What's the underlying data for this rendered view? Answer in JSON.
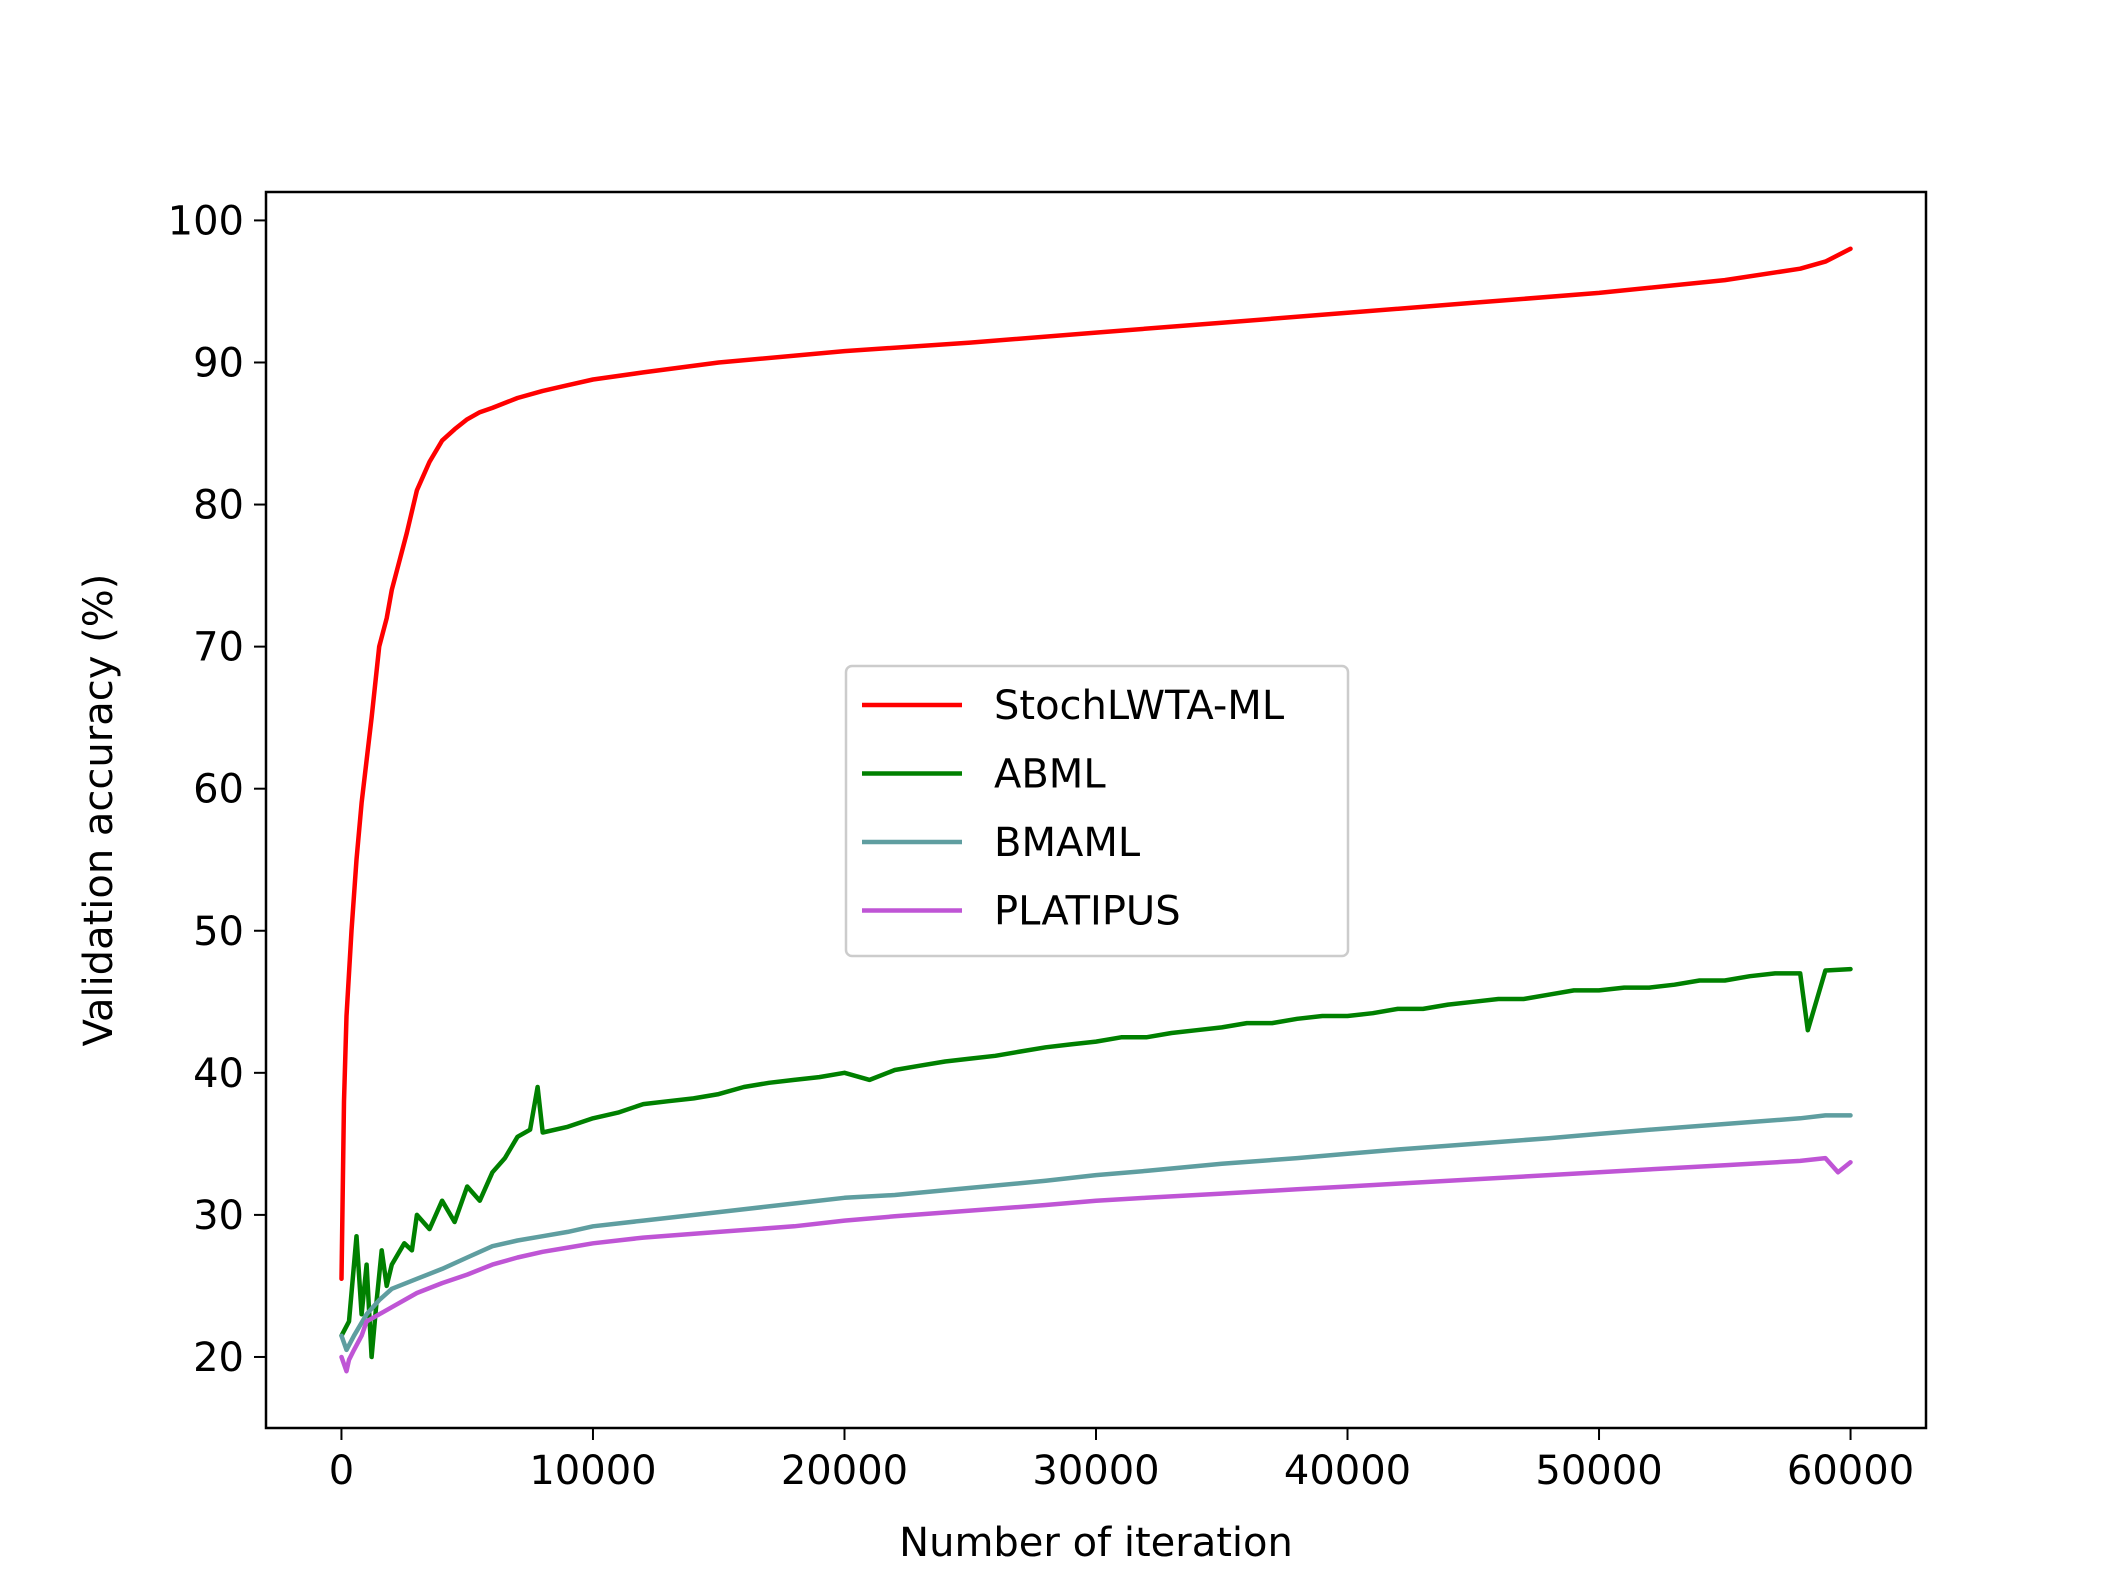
{
  "chart_data": {
    "type": "line",
    "title": "",
    "xlabel": "Number of iteration",
    "ylabel": "Validation accuracy (%)",
    "xlim": [
      -3000,
      63000
    ],
    "ylim": [
      15,
      102
    ],
    "xticks": [
      0,
      10000,
      20000,
      30000,
      40000,
      50000,
      60000
    ],
    "xtick_labels": [
      "0",
      "10000",
      "20000",
      "30000",
      "40000",
      "50000",
      "60000"
    ],
    "yticks": [
      20,
      30,
      40,
      50,
      60,
      70,
      80,
      90,
      100
    ],
    "ytick_labels": [
      "20",
      "30",
      "40",
      "50",
      "60",
      "70",
      "80",
      "90",
      "100"
    ],
    "grid": false,
    "legend_position": "center",
    "series": [
      {
        "name": "StochLWTA-ML",
        "color": "#ff0000",
        "x": [
          0,
          100,
          200,
          400,
          600,
          800,
          1000,
          1200,
          1500,
          1800,
          2000,
          2300,
          2600,
          3000,
          3500,
          4000,
          4500,
          5000,
          5500,
          6000,
          7000,
          8000,
          9000,
          10000,
          12000,
          15000,
          20000,
          25000,
          30000,
          35000,
          40000,
          45000,
          50000,
          55000,
          58000,
          59000,
          60000
        ],
        "values": [
          25.5,
          38,
          44,
          50,
          55,
          59,
          62,
          65,
          70,
          72,
          74,
          76,
          78,
          81,
          83,
          84.5,
          85.3,
          86,
          86.5,
          86.8,
          87.5,
          88,
          88.4,
          88.8,
          89.3,
          90,
          90.8,
          91.4,
          92.1,
          92.8,
          93.5,
          94.2,
          94.9,
          95.8,
          96.6,
          97.1,
          98
        ]
      },
      {
        "name": "ABML",
        "color": "#008000",
        "x": [
          0,
          300,
          600,
          800,
          1000,
          1200,
          1400,
          1600,
          1800,
          2000,
          2500,
          2800,
          3000,
          3500,
          4000,
          4500,
          5000,
          5500,
          6000,
          6500,
          7000,
          7500,
          7800,
          8000,
          9000,
          10000,
          11000,
          12000,
          13000,
          14000,
          15000,
          16000,
          17000,
          18000,
          19000,
          20000,
          21000,
          22000,
          23000,
          24000,
          25000,
          26000,
          27000,
          28000,
          29000,
          30000,
          31000,
          32000,
          33000,
          34000,
          35000,
          36000,
          37000,
          38000,
          39000,
          40000,
          41000,
          42000,
          43000,
          44000,
          45000,
          46000,
          47000,
          48000,
          49000,
          50000,
          51000,
          52000,
          53000,
          54000,
          55000,
          56000,
          57000,
          58000,
          58300,
          59000,
          60000
        ],
        "values": [
          21.5,
          22.5,
          28.5,
          23,
          26.5,
          20,
          24,
          27.5,
          25,
          26.5,
          28,
          27.5,
          30,
          29,
          31,
          29.5,
          32,
          31,
          33,
          34,
          35.5,
          36,
          39,
          35.8,
          36.2,
          36.8,
          37.2,
          37.8,
          38,
          38.2,
          38.5,
          39,
          39.3,
          39.5,
          39.7,
          40,
          39.5,
          40.2,
          40.5,
          40.8,
          41,
          41.2,
          41.5,
          41.8,
          42,
          42.2,
          42.5,
          42.5,
          42.8,
          43,
          43.2,
          43.5,
          43.5,
          43.8,
          44,
          44,
          44.2,
          44.5,
          44.5,
          44.8,
          45,
          45.2,
          45.2,
          45.5,
          45.8,
          45.8,
          46,
          46,
          46.2,
          46.5,
          46.5,
          46.8,
          47,
          47,
          43,
          47.2,
          47.3
        ]
      },
      {
        "name": "BMAML",
        "color": "#5f9ea0",
        "x": [
          0,
          200,
          500,
          1000,
          1500,
          2000,
          3000,
          4000,
          5000,
          6000,
          7000,
          8000,
          9000,
          10000,
          12000,
          15000,
          18000,
          20000,
          22000,
          25000,
          28000,
          30000,
          32000,
          35000,
          38000,
          40000,
          42000,
          45000,
          48000,
          50000,
          52000,
          55000,
          58000,
          59000,
          60000
        ],
        "values": [
          21.5,
          20.5,
          21.5,
          23,
          24,
          24.8,
          25.5,
          26.2,
          27,
          27.8,
          28.2,
          28.5,
          28.8,
          29.2,
          29.6,
          30.2,
          30.8,
          31.2,
          31.4,
          31.9,
          32.4,
          32.8,
          33.1,
          33.6,
          34,
          34.3,
          34.6,
          35,
          35.4,
          35.7,
          36,
          36.4,
          36.8,
          37,
          37
        ]
      },
      {
        "name": "PLATIPUS",
        "color": "#bf55d5",
        "x": [
          0,
          100,
          200,
          300,
          500,
          800,
          1000,
          1500,
          2000,
          3000,
          4000,
          5000,
          6000,
          7000,
          8000,
          9000,
          10000,
          12000,
          15000,
          18000,
          20000,
          22000,
          25000,
          28000,
          30000,
          32000,
          35000,
          38000,
          40000,
          42000,
          45000,
          48000,
          50000,
          52000,
          55000,
          58000,
          59000,
          59500,
          60000
        ],
        "values": [
          20,
          19.5,
          19,
          19.8,
          20.5,
          21.5,
          22.5,
          23,
          23.5,
          24.5,
          25.2,
          25.8,
          26.5,
          27,
          27.4,
          27.7,
          28,
          28.4,
          28.8,
          29.2,
          29.6,
          29.9,
          30.3,
          30.7,
          31,
          31.2,
          31.5,
          31.8,
          32,
          32.2,
          32.5,
          32.8,
          33,
          33.2,
          33.5,
          33.8,
          34,
          33,
          33.7
        ]
      }
    ]
  }
}
